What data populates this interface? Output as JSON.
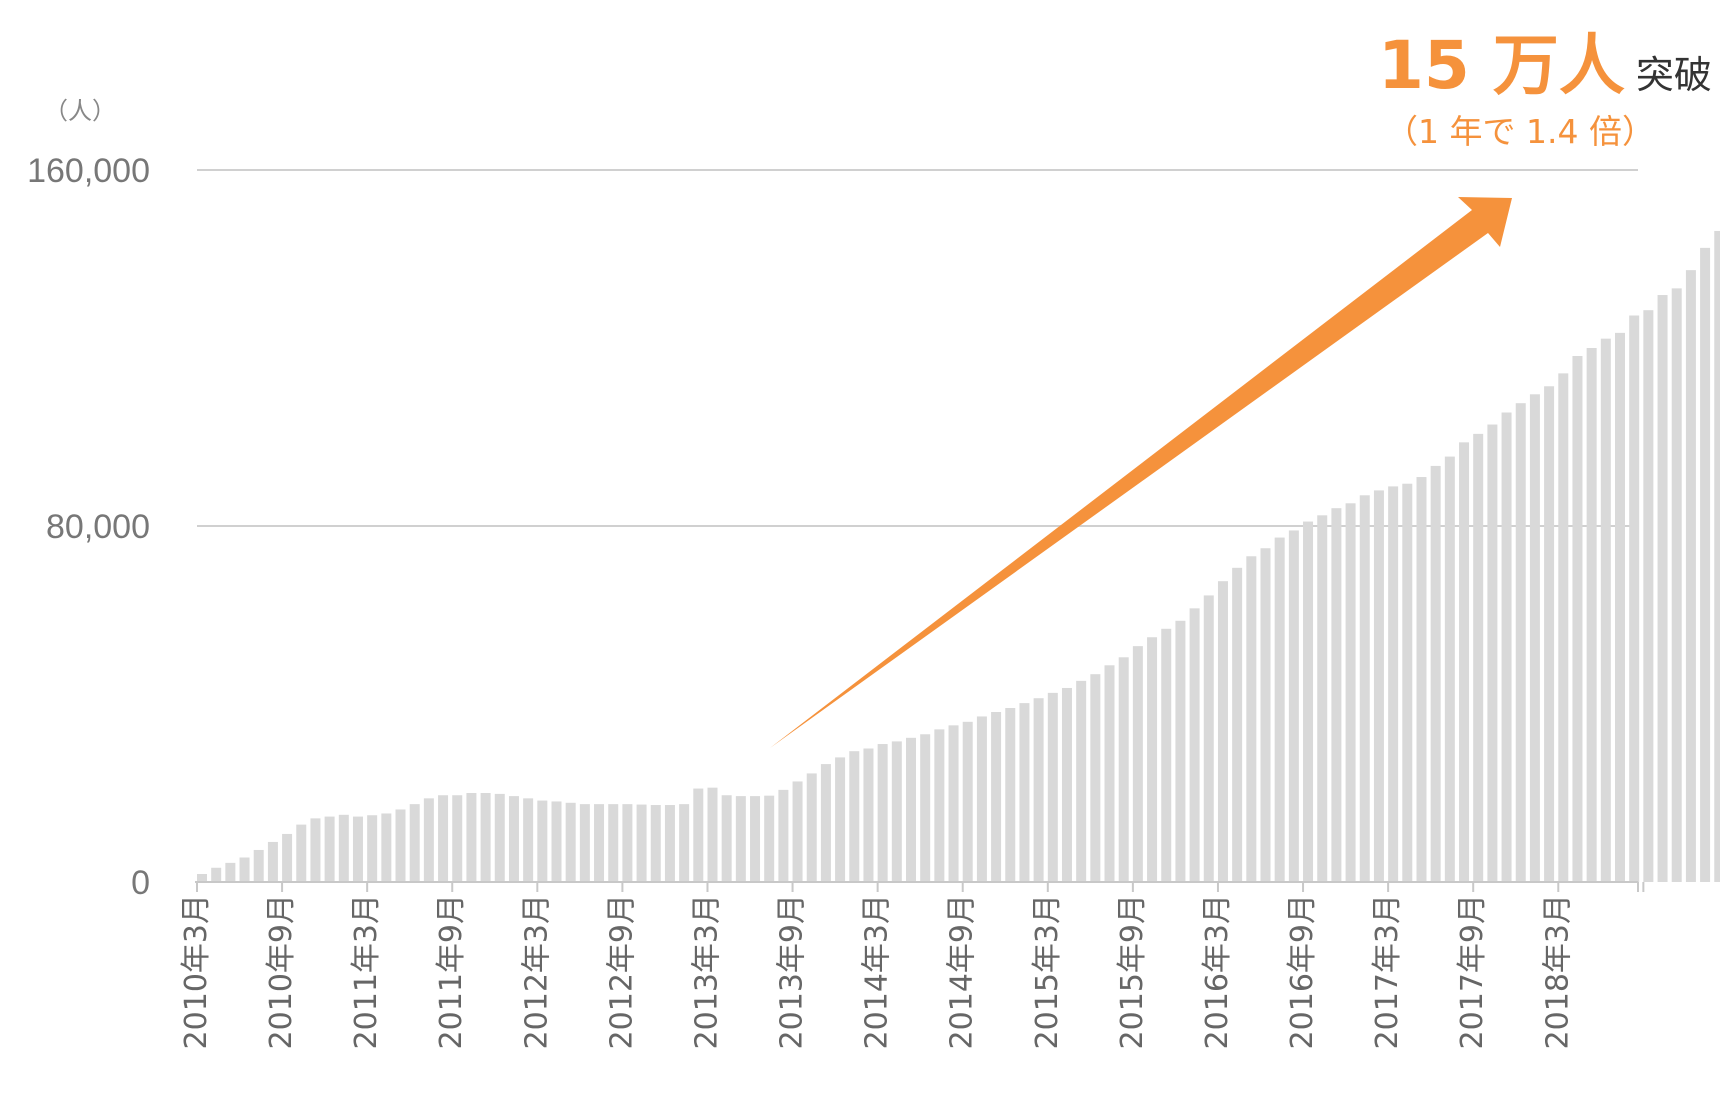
{
  "chart_data": {
    "type": "bar",
    "y_unit_label": "（人）",
    "yticks": [
      "0",
      "80,000",
      "160,000"
    ],
    "ytick_values": [
      0,
      80000,
      160000
    ],
    "ylim": [
      0,
      160000
    ],
    "grid": true,
    "xtick_labels": [
      "2010年3月",
      "2010年9月",
      "2011年3月",
      "2011年9月",
      "2012年3月",
      "2012年9月",
      "2013年3月",
      "2013年9月",
      "2014年3月",
      "2014年9月",
      "2015年3月",
      "2015年9月",
      "2016年3月",
      "2016年9月",
      "2017年3月",
      "2017年9月",
      "2018年3月"
    ],
    "first_month": "2010年3月",
    "values": [
      1800,
      3200,
      4300,
      5500,
      7200,
      9000,
      10800,
      12900,
      14300,
      14700,
      15100,
      14700,
      15000,
      15400,
      16300,
      17500,
      18800,
      19500,
      19500,
      20000,
      20000,
      19800,
      19300,
      18800,
      18300,
      18100,
      17800,
      17500,
      17500,
      17500,
      17500,
      17400,
      17300,
      17300,
      17500,
      21000,
      21200,
      19500,
      19300,
      19300,
      19400,
      20700,
      22600,
      24400,
      26500,
      28000,
      29400,
      30000,
      31000,
      31600,
      32400,
      33200,
      34300,
      35200,
      36000,
      37200,
      38200,
      39100,
      40200,
      41300,
      42500,
      43600,
      45200,
      46700,
      48700,
      50500,
      53000,
      55000,
      56900,
      58700,
      61500,
      64400,
      67600,
      70600,
      73200,
      75000,
      77400,
      79000,
      81000,
      82400,
      84000,
      85100,
      86900,
      88000,
      88900,
      89500,
      91000,
      93500,
      95600,
      98800,
      100700,
      102800,
      105500,
      107600,
      109600,
      111400,
      114300,
      118200,
      120000,
      122100,
      123400,
      127300,
      128500,
      131900,
      133400,
      137500,
      142500,
      146300
    ],
    "highlight": {
      "value": 150500,
      "color": "#f5923c"
    },
    "bar_color": "#d9d9d9",
    "accent_color": "#f5923c",
    "annotation": {
      "big": "15 万人",
      "small": "突破",
      "sub": "（1 年で 1.4 倍）"
    }
  }
}
